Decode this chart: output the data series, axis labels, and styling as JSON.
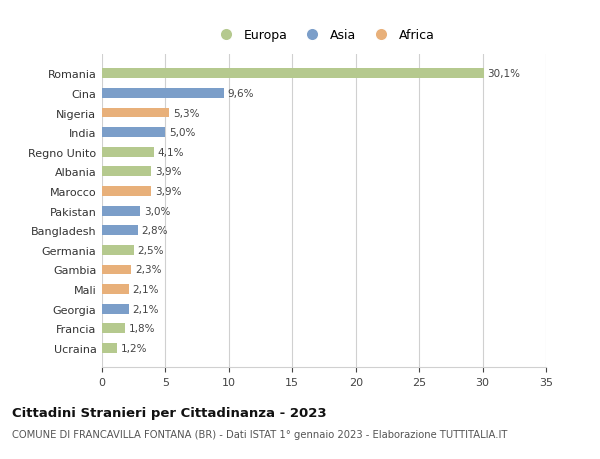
{
  "countries": [
    "Romania",
    "Cina",
    "Nigeria",
    "India",
    "Regno Unito",
    "Albania",
    "Marocco",
    "Pakistan",
    "Bangladesh",
    "Germania",
    "Gambia",
    "Mali",
    "Georgia",
    "Francia",
    "Ucraina"
  ],
  "values": [
    30.1,
    9.6,
    5.3,
    5.0,
    4.1,
    3.9,
    3.9,
    3.0,
    2.8,
    2.5,
    2.3,
    2.1,
    2.1,
    1.8,
    1.2
  ],
  "labels": [
    "30,1%",
    "9,6%",
    "5,3%",
    "5,0%",
    "4,1%",
    "3,9%",
    "3,9%",
    "3,0%",
    "2,8%",
    "2,5%",
    "2,3%",
    "2,1%",
    "2,1%",
    "1,8%",
    "1,2%"
  ],
  "continents": [
    "Europa",
    "Asia",
    "Africa",
    "Asia",
    "Europa",
    "Europa",
    "Africa",
    "Asia",
    "Asia",
    "Europa",
    "Africa",
    "Africa",
    "Asia",
    "Europa",
    "Europa"
  ],
  "colors": {
    "Europa": "#b5c98e",
    "Asia": "#7b9ec9",
    "Africa": "#e8b07a"
  },
  "title": "Cittadini Stranieri per Cittadinanza - 2023",
  "subtitle": "COMUNE DI FRANCAVILLA FONTANA (BR) - Dati ISTAT 1° gennaio 2023 - Elaborazione TUTTITALIA.IT",
  "xlim": [
    0,
    35
  ],
  "xticks": [
    0,
    5,
    10,
    15,
    20,
    25,
    30,
    35
  ],
  "background_color": "#ffffff",
  "grid_color": "#d0d0d0",
  "bar_height": 0.5
}
